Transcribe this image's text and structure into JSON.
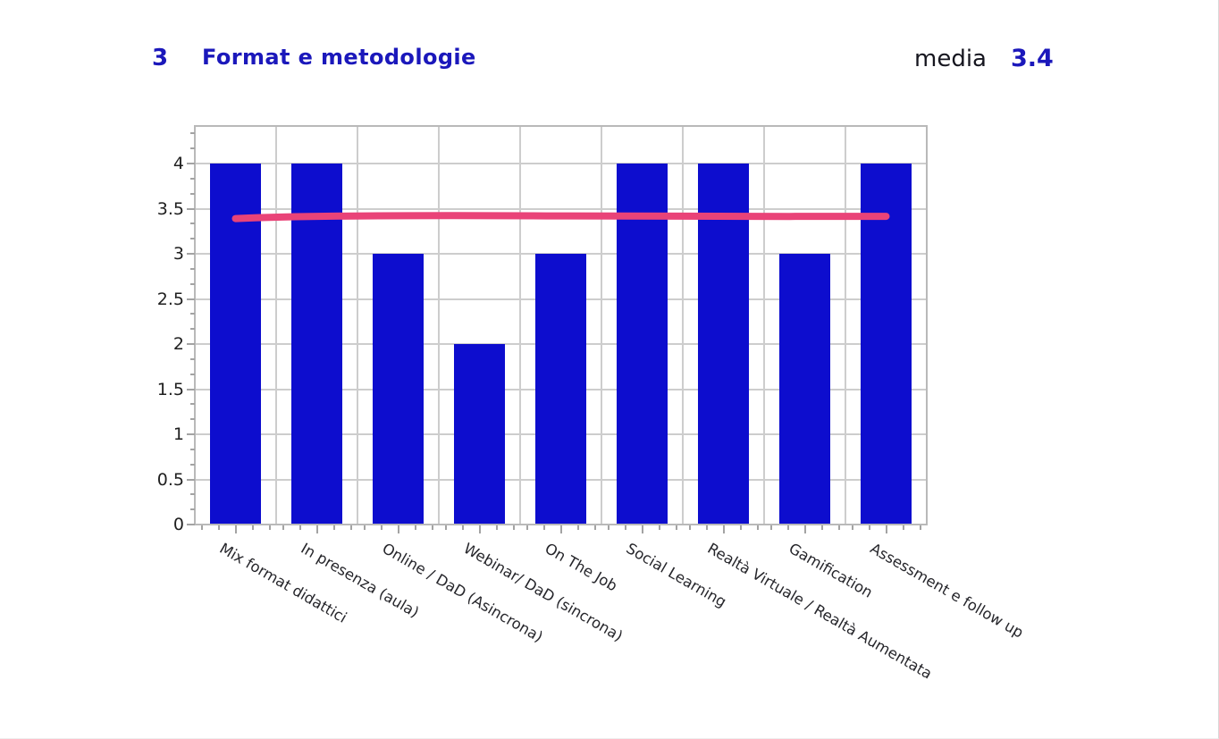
{
  "header": {
    "section_number": "3",
    "title": "Format e metodologie",
    "media_label": "media",
    "media_value": "3.4"
  },
  "colors": {
    "accent_blue": "#1b18bb",
    "bar_blue": "#0d0dce",
    "media_line_pink": "#e94378",
    "grid_gray": "#cdcdcd",
    "axis_gray": "#b9b9b9",
    "tick_gray": "#a3a3a3",
    "text_dark": "#16161f"
  },
  "chart_data": {
    "type": "bar",
    "title": "Format e metodologie",
    "categories": [
      "Mix format didattici",
      "In presenza (aula)",
      "Online / DaD (Asincrona)",
      "Webinar/ DaD (sincrona)",
      "On The Job",
      "Social Learning",
      "Realtà Virtuale / Realtà Aumentata",
      "Gamification",
      "Assessment e follow up"
    ],
    "values": [
      4,
      4,
      3,
      2,
      3,
      4,
      4,
      3,
      4
    ],
    "media_line": {
      "label": "media",
      "value": 3.4
    },
    "xlabel": "",
    "ylabel": "",
    "ylim": [
      0,
      4.4
    ],
    "yticks": [
      0,
      0.5,
      1,
      1.5,
      2,
      2.5,
      3,
      3.5,
      4
    ],
    "grid": true,
    "legend": "none"
  }
}
